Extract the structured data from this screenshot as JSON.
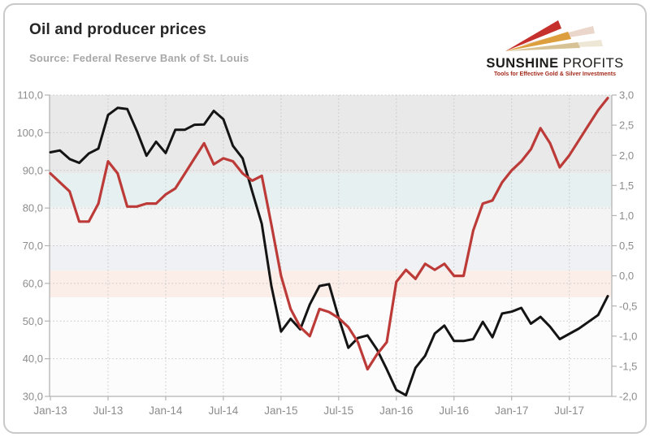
{
  "header": {
    "title": "Oil and producer prices",
    "source": "Source: Federal Reserve Bank of St. Louis"
  },
  "logo": {
    "name_bold": "SUNSHINE",
    "name_light": " PROFITS",
    "tagline": "Tools for Effective Gold & Silver Investments",
    "colors": {
      "ray_red": "#c5302c",
      "ray_gold": "#dd9f3e",
      "ray_tan": "#d6c295",
      "ray_echo1": "#ead6cb",
      "ray_echo2": "#efe7d6",
      "name_text": "#1c1c1a",
      "tagline_text": "#a32a1c"
    }
  },
  "chart_data": {
    "type": "line",
    "months": [
      "Jan-13",
      "Feb-13",
      "Mar-13",
      "Apr-13",
      "May-13",
      "Jun-13",
      "Jul-13",
      "Aug-13",
      "Sep-13",
      "Oct-13",
      "Nov-13",
      "Dec-13",
      "Jan-14",
      "Feb-14",
      "Mar-14",
      "Apr-14",
      "May-14",
      "Jun-14",
      "Jul-14",
      "Aug-14",
      "Sep-14",
      "Oct-14",
      "Nov-14",
      "Dec-14",
      "Jan-15",
      "Feb-15",
      "Mar-15",
      "Apr-15",
      "May-15",
      "Jun-15",
      "Jul-15",
      "Aug-15",
      "Sep-15",
      "Oct-15",
      "Nov-15",
      "Dec-15",
      "Jan-16",
      "Feb-16",
      "Mar-16",
      "Apr-16",
      "May-16",
      "Jun-16",
      "Jul-16",
      "Aug-16",
      "Sep-16",
      "Oct-16",
      "Nov-16",
      "Dec-16",
      "Jan-17",
      "Feb-17",
      "Mar-17",
      "Apr-17",
      "May-17",
      "Jun-17",
      "Jul-17",
      "Aug-17",
      "Sep-17",
      "Oct-17",
      "Nov-17"
    ],
    "x_tick_labels": [
      "Jan-13",
      "Jul-13",
      "Jan-14",
      "Jul-14",
      "Jan-15",
      "Jul-15",
      "Jan-16",
      "Jul-16",
      "Jan-17",
      "Jul-17"
    ],
    "x_tick_month_index": [
      0,
      6,
      12,
      18,
      24,
      30,
      36,
      42,
      48,
      54
    ],
    "left_axis": {
      "min": 30,
      "max": 110,
      "step": 10,
      "tick_labels": [
        "110,0",
        "100,0",
        "90,0",
        "80,0",
        "70,0",
        "60,0",
        "50,0",
        "40,0",
        "30,0"
      ]
    },
    "right_axis": {
      "min": -2,
      "max": 3,
      "step": 0.5,
      "tick_labels": [
        "3,0",
        "2,5",
        "2,0",
        "1,5",
        "1,0",
        "0,5",
        "0,0",
        "-0,5",
        "-1,0",
        "-1,5",
        "-2,0"
      ]
    },
    "series": [
      {
        "id": "oil_price_black_line",
        "axis": "left",
        "color": "#141414",
        "width": 3,
        "values": [
          94.8,
          95.3,
          93.0,
          92.0,
          94.5,
          95.8,
          104.7,
          106.6,
          106.3,
          100.5,
          93.9,
          97.6,
          94.6,
          100.8,
          100.8,
          102.1,
          102.2,
          105.8,
          103.6,
          96.5,
          93.2,
          84.4,
          75.8,
          59.3,
          47.2,
          50.6,
          47.8,
          54.4,
          59.3,
          59.8,
          50.9,
          42.9,
          45.5,
          46.2,
          42.4,
          37.2,
          31.7,
          30.3,
          37.6,
          40.8,
          46.7,
          48.8,
          44.7,
          44.7,
          45.2,
          49.8,
          45.7,
          52.0,
          52.5,
          53.5,
          49.3,
          51.1,
          48.5,
          45.2,
          46.6,
          48.0,
          49.8,
          51.6,
          56.6
        ]
      },
      {
        "id": "producer_prices_red_line",
        "axis": "right",
        "color": "#bc3b38",
        "width": 3.2,
        "values": [
          1.7,
          1.55,
          1.4,
          0.9,
          0.9,
          1.2,
          1.9,
          1.7,
          1.15,
          1.15,
          1.2,
          1.2,
          1.35,
          1.45,
          1.7,
          1.95,
          2.2,
          1.85,
          1.95,
          1.9,
          1.7,
          1.58,
          1.66,
          0.85,
          0.0,
          -0.55,
          -0.85,
          -1.0,
          -0.55,
          -0.6,
          -0.7,
          -0.85,
          -1.1,
          -1.55,
          -1.3,
          -1.1,
          -0.1,
          0.1,
          -0.05,
          0.2,
          0.1,
          0.2,
          0.0,
          0.0,
          0.75,
          1.2,
          1.25,
          1.55,
          1.75,
          1.9,
          2.1,
          2.45,
          2.2,
          1.8,
          2.0,
          2.25,
          2.5,
          2.75,
          2.95
        ]
      }
    ],
    "background_bands": [
      {
        "from": 110,
        "to": 89.3,
        "color": "#e9e9e9"
      },
      {
        "from": 89.3,
        "to": 80.2,
        "color": "#e7f0f0"
      },
      {
        "from": 80.2,
        "to": 70.1,
        "color": "#f4f4f4"
      },
      {
        "from": 70.1,
        "to": 63.4,
        "color": "#f0f1f4"
      },
      {
        "from": 63.4,
        "to": 56.3,
        "color": "#fbeee8"
      },
      {
        "from": 56.3,
        "to": 30,
        "color": "#fcfcfc"
      }
    ],
    "grid": {
      "gridline_color": "#c6c6c6",
      "axis_color": "#b3b3b3",
      "label_color": "#8c8c8c"
    },
    "legend": null,
    "title": "Oil and producer prices"
  }
}
